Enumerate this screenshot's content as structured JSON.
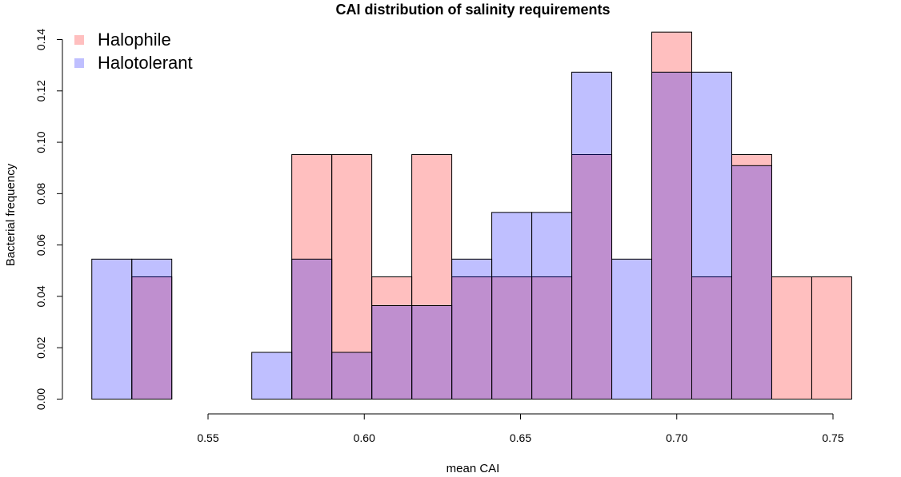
{
  "chart_data": {
    "type": "bar",
    "title": "CAI distribution of salinity requirements",
    "xlabel": "mean CAI",
    "ylabel": "Bacterial frequency",
    "xlim": [
      0.51,
      0.76
    ],
    "ylim": [
      0,
      0.14
    ],
    "xticks": [
      "0.55",
      "0.60",
      "0.65",
      "0.70",
      "0.75"
    ],
    "yticks": [
      "0.00",
      "0.02",
      "0.04",
      "0.06",
      "0.08",
      "0.10",
      "0.12",
      "0.14"
    ],
    "legend_position": "top-left",
    "grid": false,
    "bins": [
      [
        0.5128,
        0.5256
      ],
      [
        0.5256,
        0.5384
      ],
      [
        0.5384,
        0.5512
      ],
      [
        0.5512,
        0.564
      ],
      [
        0.564,
        0.5768
      ],
      [
        0.5768,
        0.5896
      ],
      [
        0.5896,
        0.6024
      ],
      [
        0.6024,
        0.6152
      ],
      [
        0.6152,
        0.628
      ],
      [
        0.628,
        0.6408
      ],
      [
        0.6408,
        0.6536
      ],
      [
        0.6536,
        0.6664
      ],
      [
        0.6664,
        0.6792
      ],
      [
        0.6792,
        0.692
      ],
      [
        0.692,
        0.7048
      ],
      [
        0.7048,
        0.7176
      ],
      [
        0.7176,
        0.7304
      ],
      [
        0.7304,
        0.7432
      ],
      [
        0.7432,
        0.756
      ]
    ],
    "series": [
      {
        "name": "Halophile",
        "color": "#FF0000",
        "values": [
          0,
          0.0476,
          0,
          0,
          0,
          0.0952,
          0.0952,
          0.0476,
          0.0952,
          0.0476,
          0.0476,
          0.0476,
          0.0952,
          0,
          0.1429,
          0.0476,
          0.0952,
          0.0476,
          0.0476
        ]
      },
      {
        "name": "Halotolerant",
        "color": "#0000FF",
        "values": [
          0.0545,
          0.0545,
          0,
          0,
          0.0182,
          0.0545,
          0.0182,
          0.0364,
          0.0364,
          0.0545,
          0.0727,
          0.0727,
          0.1273,
          0.0545,
          0.1273,
          0.1273,
          0.0909,
          0,
          0
        ]
      }
    ]
  }
}
